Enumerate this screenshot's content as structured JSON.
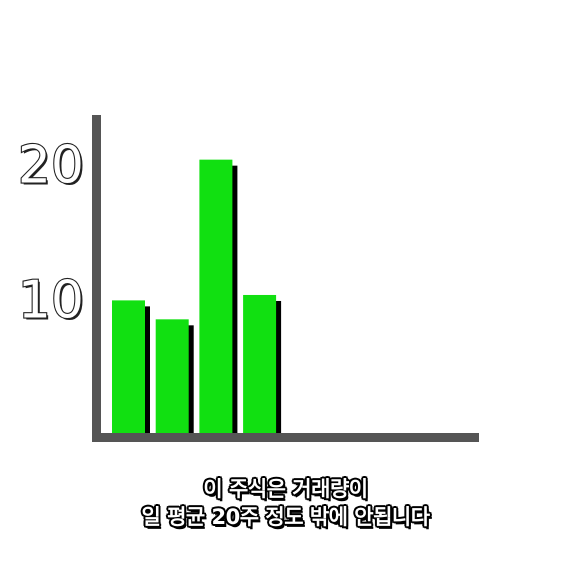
{
  "chart_data": {
    "type": "bar",
    "title": "",
    "xlabel": "",
    "ylabel": "",
    "categories": [
      "",
      "",
      "",
      ""
    ],
    "values": [
      9.8,
      8.4,
      20.2,
      10.2
    ],
    "yticks": [
      10,
      20
    ],
    "ylim": [
      0,
      23.5
    ],
    "bar_color": "#11e011",
    "shadow_color": "#000000",
    "axis_color": "#555555",
    "grid": false,
    "legend": "none"
  },
  "caption": {
    "line1": "이 주식은 거래량이",
    "line2": "일 평균 20주 정도 밖에 안됩니다"
  }
}
